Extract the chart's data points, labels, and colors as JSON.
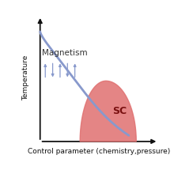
{
  "title": "",
  "xlabel": "Control parameter (chemistry,pressure)",
  "ylabel": "Temperature",
  "magnetism_label": "Magnetism",
  "sc_label": "SC",
  "bg_color": "#ffffff",
  "curve_color": "#8899CC",
  "curve_lw": 2.0,
  "sc_fill_color": "#E07070",
  "sc_fill_alpha": 0.85,
  "arrow_color": "#8899CC",
  "axis_color": "#111111",
  "label_fontsize": 6.5,
  "magnetism_fontsize": 7.5,
  "sc_fontsize": 9,
  "sc_label_color": "#7a1010"
}
